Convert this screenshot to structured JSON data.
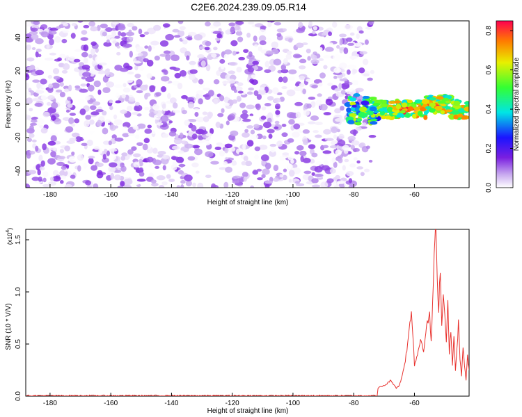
{
  "figure": {
    "title": "C2E6.2024.239.09.05.R14"
  },
  "chart_data": [
    {
      "type": "heatmap",
      "xlabel": "Height of straight line (km)",
      "ylabel": "Frequency (Hz)",
      "xlim": [
        -188,
        -42
      ],
      "ylim": [
        -50,
        50
      ],
      "xticks": [
        -180,
        -160,
        -140,
        -120,
        -100,
        -80,
        -60
      ],
      "yticks": [
        -40,
        -20,
        0,
        20,
        40
      ],
      "colorbar": {
        "label": "Normalized spectral amplitude",
        "range": [
          0.0,
          0.85
        ],
        "ticks": [
          0.0,
          0.2,
          0.4,
          0.6,
          0.8
        ]
      },
      "features": [
        {
          "description_x_range": [
            -188,
            -73
          ],
          "amplitude_range": [
            0.0,
            0.15
          ]
        },
        {
          "description_x_range": [
            -82,
            -42
          ],
          "frequency_center": -3,
          "amplitude_range": [
            0.15,
            0.85
          ]
        }
      ],
      "grid": false
    },
    {
      "type": "line",
      "xlabel": "Height of straight line (km)",
      "ylabel": "SNR (10 * V/V)",
      "y_multiplier": "(x10^4)",
      "y_multiplier_base": "(x10",
      "y_multiplier_exp": "4",
      "y_multiplier_close": ")",
      "xlim": [
        -188,
        -42
      ],
      "ylim": [
        0.0,
        1.6
      ],
      "xticks": [
        -180,
        -160,
        -140,
        -120,
        -100,
        -80,
        -60
      ],
      "yticks": [
        0.0,
        0.5,
        1.0,
        1.5
      ],
      "ytick_labels": [
        "0.0",
        "0.5",
        "1.0",
        "1.5"
      ],
      "series": [
        {
          "color": "#e8312d",
          "x": [
            -188,
            -180,
            -170,
            -160,
            -150,
            -140,
            -130,
            -120,
            -110,
            -100,
            -90,
            -80,
            -76,
            -74,
            -72,
            -70,
            -69,
            -68,
            -67,
            -66,
            -65,
            -64,
            -63,
            -62,
            -61.5,
            -61,
            -60.5,
            -60,
            -59,
            -58,
            -57,
            -56,
            -55,
            -54.5,
            -54,
            -53.5,
            -53,
            -52.5,
            -52,
            -51.5,
            -51,
            -50.5,
            -50,
            -49.5,
            -49,
            -48.5,
            -48,
            -47.5,
            -47,
            -46.5,
            -46,
            -45.5,
            -45,
            -44.5,
            -44,
            -43.5,
            -43,
            -42.5,
            -42
          ],
          "y": [
            0.0,
            0.0,
            0.0,
            0.0,
            0.0,
            0.0,
            0.0,
            0.0,
            0.0,
            0.0,
            0.0,
            0.0,
            0.02,
            0.04,
            0.08,
            0.1,
            0.12,
            0.15,
            0.12,
            0.08,
            0.1,
            0.2,
            0.35,
            0.55,
            0.7,
            0.82,
            0.6,
            0.3,
            0.4,
            0.55,
            0.45,
            0.65,
            0.8,
            0.5,
            0.9,
            1.35,
            1.6,
            1.1,
            0.85,
            1.25,
            0.7,
            0.95,
            0.8,
            0.55,
            0.9,
            0.4,
            0.65,
            0.3,
            0.55,
            0.25,
            0.45,
            0.7,
            0.35,
            0.2,
            0.45,
            0.3,
            0.15,
            0.38,
            0.25
          ]
        }
      ],
      "grid": false
    }
  ]
}
